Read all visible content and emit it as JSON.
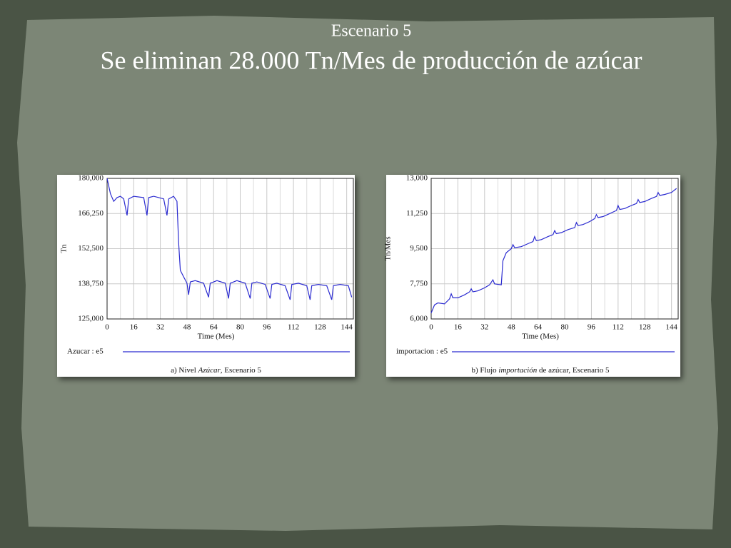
{
  "slide": {
    "subtitle": "Escenario 5",
    "title": "Se eliminan 28.000 Tn/Mes de producción de azúcar"
  },
  "chart_data": [
    {
      "type": "line",
      "ylabel": "Tn",
      "xlabel": "Time (Mes)",
      "caption": [
        "a) Nivel ",
        "Azúcar",
        ", Escenario 5"
      ],
      "x": [
        0,
        2,
        4,
        6,
        8,
        10,
        12,
        13,
        16,
        22,
        24,
        25,
        28,
        34,
        36,
        37,
        40,
        42,
        43,
        44,
        46,
        48,
        49,
        50,
        53,
        58,
        61,
        62,
        66,
        71,
        73,
        74,
        78,
        83,
        86,
        87,
        90,
        95,
        98,
        99,
        102,
        107,
        110,
        111,
        115,
        120,
        122,
        123,
        127,
        132,
        135,
        136,
        140,
        145,
        147
      ],
      "series": [
        {
          "name": "Azucar : e5",
          "color": "#2b2bd0",
          "values": [
            180000,
            174000,
            171000,
            172500,
            173000,
            172000,
            165500,
            172000,
            173000,
            172500,
            165500,
            172500,
            173000,
            172000,
            165500,
            172000,
            173000,
            171000,
            155000,
            144000,
            141500,
            139000,
            134500,
            139500,
            140000,
            139000,
            133500,
            139000,
            140000,
            139000,
            133000,
            139000,
            140000,
            139000,
            133000,
            139000,
            139500,
            138500,
            133000,
            138500,
            139000,
            138000,
            132500,
            138500,
            139000,
            138000,
            132500,
            138000,
            138500,
            138000,
            132500,
            138000,
            138500,
            138000,
            133500
          ]
        }
      ],
      "xlim": [
        0,
        148
      ],
      "xticks": [
        0,
        16,
        32,
        48,
        64,
        80,
        96,
        112,
        128,
        144
      ],
      "ylim": [
        125000,
        180000
      ],
      "yticks": [
        {
          "value": 125000,
          "label": "125,000"
        },
        {
          "value": 138750,
          "label": "138,750"
        },
        {
          "value": 152500,
          "label": "152,500"
        },
        {
          "value": 166250,
          "label": "166,250"
        },
        {
          "value": 180000,
          "label": "180,000"
        }
      ],
      "grid": true
    },
    {
      "type": "line",
      "ylabel": "Tn/Mes",
      "xlabel": "Time (Mes)",
      "caption": [
        "b) Flujo ",
        "importación",
        " de azúcar, Escenario 5"
      ],
      "x": [
        0,
        2,
        4,
        8,
        11,
        12,
        13,
        16,
        20,
        23,
        24,
        25,
        28,
        32,
        35,
        37,
        38,
        42,
        43,
        45,
        48,
        49,
        50,
        54,
        58,
        61,
        62,
        63,
        66,
        70,
        73,
        74,
        75,
        78,
        82,
        86,
        87,
        88,
        91,
        95,
        98,
        99,
        100,
        103,
        107,
        111,
        112,
        113,
        116,
        120,
        123,
        124,
        125,
        128,
        132,
        135,
        136,
        137,
        140,
        144,
        147
      ],
      "series": [
        {
          "name": "importacion : e5",
          "color": "#2b2bd0",
          "values": [
            6300,
            6700,
            6800,
            6750,
            7000,
            7250,
            7050,
            7050,
            7200,
            7350,
            7500,
            7350,
            7400,
            7550,
            7700,
            7950,
            7750,
            7700,
            8900,
            9300,
            9500,
            9700,
            9550,
            9600,
            9750,
            9850,
            10100,
            9900,
            9950,
            10100,
            10200,
            10400,
            10250,
            10300,
            10450,
            10550,
            10800,
            10650,
            10700,
            10850,
            11000,
            11200,
            11050,
            11100,
            11250,
            11400,
            11650,
            11450,
            11500,
            11650,
            11750,
            11950,
            11800,
            11850,
            12000,
            12100,
            12300,
            12150,
            12200,
            12300,
            12500
          ]
        }
      ],
      "xlim": [
        0,
        148
      ],
      "xticks": [
        0,
        16,
        32,
        48,
        64,
        80,
        96,
        112,
        128,
        144
      ],
      "ylim": [
        6000,
        13000
      ],
      "yticks": [
        {
          "value": 6000,
          "label": "6,000"
        },
        {
          "value": 7750,
          "label": "7,750"
        },
        {
          "value": 9500,
          "label": "9,500"
        },
        {
          "value": 11250,
          "label": "11,250"
        },
        {
          "value": 13000,
          "label": "13,000"
        }
      ],
      "grid": true
    }
  ]
}
